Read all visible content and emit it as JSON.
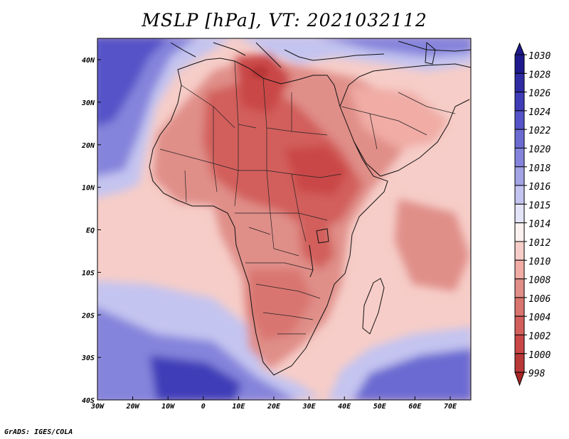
{
  "title": "MSLP [hPa], VT: 2021032112",
  "footer": "GrADS: IGES/COLA",
  "map": {
    "variable": "MSLP",
    "units": "hPa",
    "valid_time": "2021032112",
    "lat_labels": [
      "40N",
      "30N",
      "20N",
      "10N",
      "EQ",
      "10S",
      "20S",
      "30S",
      "40S"
    ],
    "lon_labels": [
      "30W",
      "20W",
      "10W",
      "0",
      "10E",
      "20E",
      "30E",
      "40E",
      "50E",
      "60E",
      "70E"
    ]
  },
  "colorbar": {
    "levels": [
      "1030",
      "1028",
      "1026",
      "1024",
      "1022",
      "1020",
      "1018",
      "1016",
      "1015",
      "1014",
      "1012",
      "1010",
      "1008",
      "1006",
      "1004",
      "1002",
      "1000",
      "998"
    ],
    "colors": [
      "#1e1a8c",
      "#2f2ba3",
      "#3f3cb8",
      "#5553c7",
      "#6b6bd2",
      "#8584dc",
      "#a3a3e6",
      "#c4c4f0",
      "#e4e4f8",
      "#fbf2f0",
      "#f6cdc8",
      "#f0aca5",
      "#e08e88",
      "#d9746f",
      "#d25f5c",
      "#c94747",
      "#b93838",
      "#a82626"
    ]
  }
}
